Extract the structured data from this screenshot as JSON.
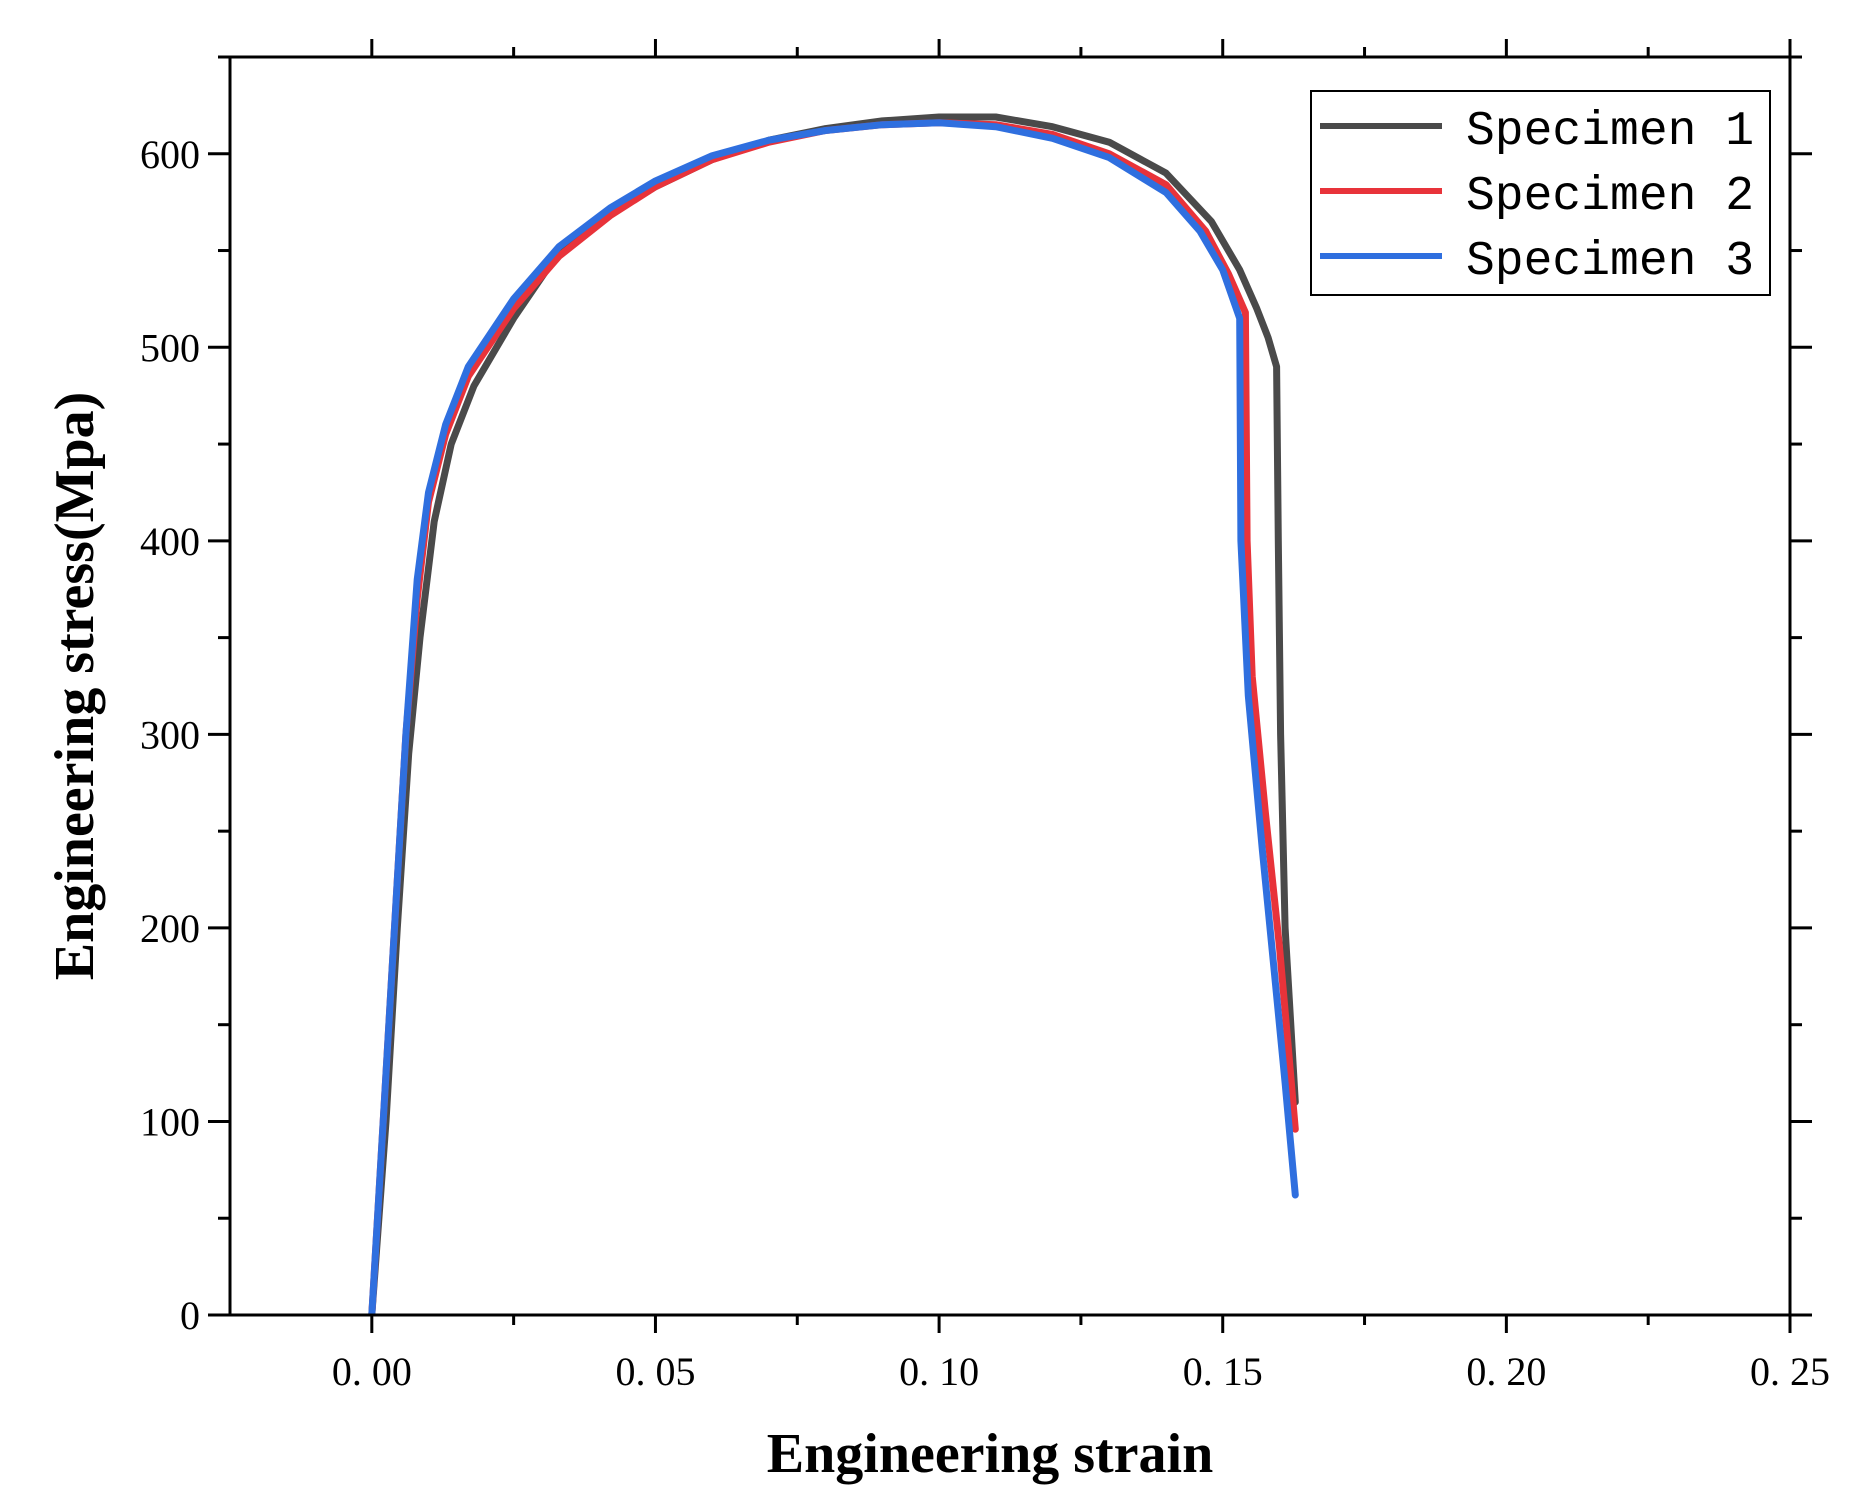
{
  "chart_data": {
    "type": "line",
    "title": "",
    "xlabel": "Engineering strain",
    "ylabel": "Engineering stress(Mpa)",
    "xlim": [
      -0.025,
      0.25
    ],
    "ylim": [
      0,
      650
    ],
    "x_ticks": [
      0.0,
      0.05,
      0.1,
      0.15,
      0.2,
      0.25
    ],
    "x_tick_labels": [
      "0. 00",
      "0. 05",
      "0. 10",
      "0. 15",
      "0. 20",
      "0. 25"
    ],
    "y_ticks": [
      0,
      100,
      200,
      300,
      400,
      500,
      600
    ],
    "y_tick_labels": [
      "0",
      "100",
      "200",
      "300",
      "400",
      "500",
      "600"
    ],
    "grid": false,
    "legend_position": "top-right",
    "series": [
      {
        "name": "Specimen 1",
        "color": "#4a4a4a",
        "points": [
          [
            0.0,
            0
          ],
          [
            0.0025,
            100
          ],
          [
            0.0045,
            200
          ],
          [
            0.0065,
            290
          ],
          [
            0.0085,
            350
          ],
          [
            0.011,
            410
          ],
          [
            0.014,
            450
          ],
          [
            0.018,
            480
          ],
          [
            0.025,
            515
          ],
          [
            0.032,
            545
          ],
          [
            0.04,
            565
          ],
          [
            0.05,
            583
          ],
          [
            0.06,
            597
          ],
          [
            0.07,
            607
          ],
          [
            0.08,
            613
          ],
          [
            0.09,
            617
          ],
          [
            0.1,
            619
          ],
          [
            0.11,
            619
          ],
          [
            0.12,
            614
          ],
          [
            0.13,
            606
          ],
          [
            0.14,
            590
          ],
          [
            0.148,
            565
          ],
          [
            0.153,
            540
          ],
          [
            0.156,
            520
          ],
          [
            0.158,
            505
          ],
          [
            0.1595,
            490
          ],
          [
            0.1598,
            400
          ],
          [
            0.1602,
            300
          ],
          [
            0.161,
            200
          ],
          [
            0.162,
            150
          ],
          [
            0.1628,
            110
          ]
        ]
      },
      {
        "name": "Specimen 2",
        "color": "#e8333a",
        "points": [
          [
            0.0,
            0
          ],
          [
            0.002,
            100
          ],
          [
            0.004,
            200
          ],
          [
            0.006,
            300
          ],
          [
            0.008,
            370
          ],
          [
            0.01,
            420
          ],
          [
            0.013,
            455
          ],
          [
            0.017,
            485
          ],
          [
            0.025,
            520
          ],
          [
            0.033,
            547
          ],
          [
            0.042,
            568
          ],
          [
            0.05,
            583
          ],
          [
            0.06,
            597
          ],
          [
            0.07,
            606
          ],
          [
            0.08,
            612
          ],
          [
            0.09,
            615
          ],
          [
            0.1,
            616
          ],
          [
            0.11,
            615
          ],
          [
            0.12,
            610
          ],
          [
            0.13,
            600
          ],
          [
            0.14,
            584
          ],
          [
            0.147,
            560
          ],
          [
            0.151,
            538
          ],
          [
            0.154,
            518
          ],
          [
            0.1543,
            400
          ],
          [
            0.1552,
            330
          ],
          [
            0.1575,
            260
          ],
          [
            0.16,
            190
          ],
          [
            0.1615,
            140
          ],
          [
            0.1628,
            96
          ]
        ]
      },
      {
        "name": "Specimen 3",
        "color": "#2f6fdf",
        "points": [
          [
            0.0,
            0
          ],
          [
            0.002,
            100
          ],
          [
            0.004,
            200
          ],
          [
            0.006,
            300
          ],
          [
            0.008,
            380
          ],
          [
            0.01,
            425
          ],
          [
            0.013,
            460
          ],
          [
            0.017,
            490
          ],
          [
            0.025,
            525
          ],
          [
            0.033,
            552
          ],
          [
            0.042,
            572
          ],
          [
            0.05,
            586
          ],
          [
            0.06,
            599
          ],
          [
            0.07,
            607
          ],
          [
            0.08,
            612
          ],
          [
            0.09,
            615
          ],
          [
            0.1,
            616
          ],
          [
            0.11,
            614
          ],
          [
            0.12,
            608
          ],
          [
            0.13,
            598
          ],
          [
            0.14,
            580
          ],
          [
            0.146,
            560
          ],
          [
            0.15,
            540
          ],
          [
            0.153,
            515
          ],
          [
            0.1532,
            400
          ],
          [
            0.1545,
            320
          ],
          [
            0.157,
            240
          ],
          [
            0.159,
            180
          ],
          [
            0.161,
            120
          ],
          [
            0.1628,
            62
          ]
        ]
      }
    ]
  }
}
